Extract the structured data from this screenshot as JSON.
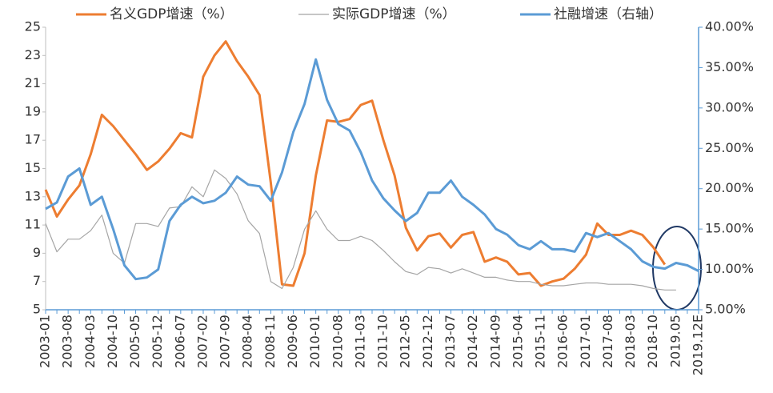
{
  "chart_data": {
    "type": "line",
    "categories": [
      "2003-01",
      null,
      "2003-08",
      null,
      "2004-03",
      null,
      "2004-10",
      null,
      "2005-05",
      null,
      "2005-12",
      null,
      "2006-07",
      null,
      "2007-02",
      null,
      "2007-09",
      null,
      "2008-04",
      null,
      "2008-11",
      null,
      "2009-06",
      null,
      "2010-01",
      null,
      "2010-08",
      null,
      "2011-03",
      null,
      "2011-10",
      null,
      "2012-05",
      null,
      "2012-12",
      null,
      "2013-07",
      null,
      "2014-02",
      null,
      "2014-09",
      null,
      "2015-04",
      null,
      "2015-11",
      null,
      "2016-06",
      null,
      "2017-01",
      null,
      "2017-08",
      null,
      "2018-03",
      null,
      "2018-10",
      null,
      "2019.05",
      null,
      "2019.12E"
    ],
    "series": [
      {
        "name": "名义GDP增速（%）",
        "color": "#ed7d31",
        "values": [
          13.5,
          11.6,
          12.8,
          13.8,
          16.0,
          18.8,
          18.0,
          17.0,
          16.0,
          14.9,
          15.5,
          16.4,
          17.5,
          17.2,
          21.5,
          23.0,
          24.0,
          22.6,
          21.5,
          20.2,
          14.0,
          6.8,
          6.7,
          9.0,
          14.5,
          18.4,
          18.3,
          18.5,
          19.5,
          19.8,
          17.0,
          14.5,
          10.8,
          9.2,
          10.2,
          10.4,
          9.4,
          10.3,
          10.5,
          8.4,
          8.7,
          8.4,
          7.5,
          7.6,
          6.7,
          7.0,
          7.2,
          7.9,
          8.9,
          11.1,
          10.3,
          10.3,
          10.6,
          10.3,
          9.4,
          8.2,
          null,
          null,
          null
        ]
      },
      {
        "name": "实际GDP增速（%）",
        "color": "#a5a5a5",
        "values": [
          11.1,
          9.1,
          10.0,
          10.0,
          10.6,
          11.7,
          9.0,
          8.3,
          11.1,
          11.1,
          10.9,
          12.2,
          12.3,
          13.7,
          13.0,
          14.9,
          14.3,
          13.2,
          11.3,
          10.4,
          7.0,
          6.5,
          8.0,
          10.7,
          12.0,
          10.7,
          9.9,
          9.9,
          10.2,
          9.9,
          9.2,
          8.4,
          7.7,
          7.5,
          8.0,
          7.9,
          7.6,
          7.9,
          7.6,
          7.3,
          7.3,
          7.1,
          7.0,
          7.0,
          6.8,
          6.7,
          6.7,
          6.8,
          6.9,
          6.9,
          6.8,
          6.8,
          6.8,
          6.7,
          6.5,
          6.4,
          6.4,
          null,
          null
        ]
      },
      {
        "name": "社融增速（右轴）",
        "color": "#5b9bd5",
        "axis": "y2",
        "values": [
          17.5,
          18.3,
          21.5,
          22.5,
          18.0,
          19.0,
          15.0,
          10.5,
          8.8,
          9.0,
          10.0,
          16.0,
          18.0,
          19.0,
          18.2,
          18.5,
          19.5,
          21.5,
          20.5,
          20.3,
          18.5,
          22.0,
          27.0,
          30.5,
          36.0,
          31.0,
          28.0,
          27.2,
          24.5,
          21.0,
          18.8,
          17.3,
          16.0,
          17.0,
          19.5,
          19.5,
          21.0,
          19.0,
          18.0,
          16.8,
          15.0,
          14.3,
          13.0,
          12.5,
          13.5,
          12.5,
          12.5,
          12.2,
          14.5,
          14.0,
          14.5,
          13.5,
          12.5,
          11.0,
          10.3,
          10.1,
          10.8,
          10.5,
          9.8
        ]
      }
    ],
    "ylim": [
      5,
      25
    ],
    "yticks": [
      5,
      7,
      9,
      11,
      13,
      15,
      17,
      19,
      21,
      23,
      25
    ],
    "y2lim": [
      5,
      40
    ],
    "y2ticks": [
      {
        "value": 5,
        "label": "5.00%"
      },
      {
        "value": 10,
        "label": "10.00%"
      },
      {
        "value": 15,
        "label": "15.00%"
      },
      {
        "value": 20,
        "label": "20.00%"
      },
      {
        "value": 25,
        "label": "25.00%"
      },
      {
        "value": 30,
        "label": "30.00%"
      },
      {
        "value": 35,
        "label": "35.00%"
      },
      {
        "value": 40,
        "label": "40.00%"
      }
    ],
    "grid": false,
    "legend": "top"
  }
}
